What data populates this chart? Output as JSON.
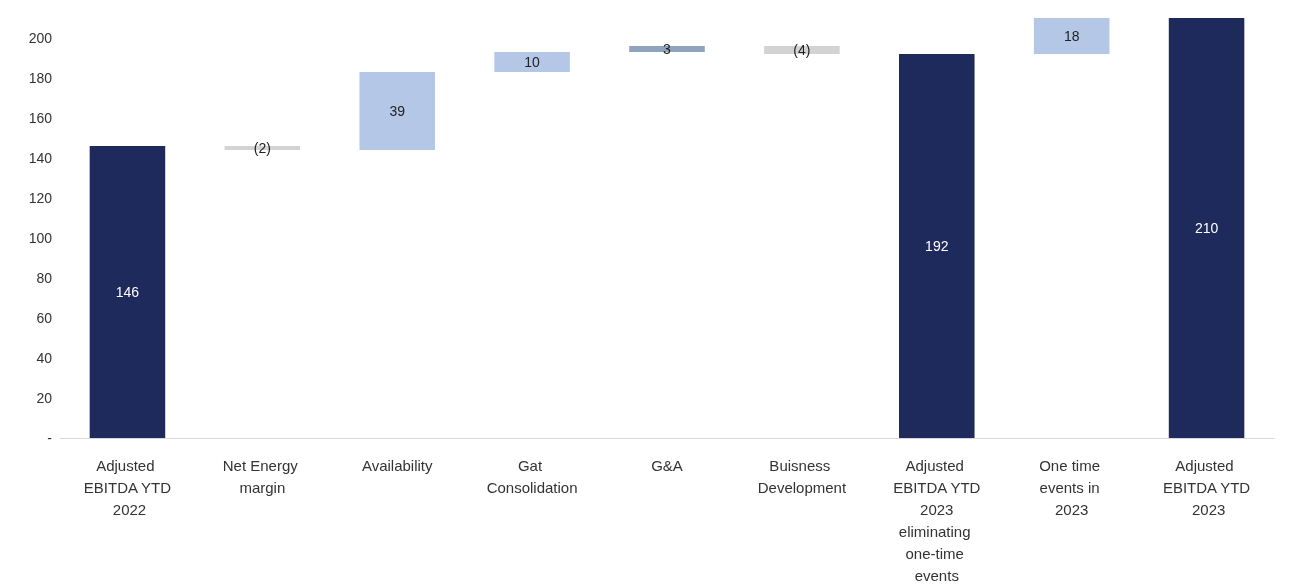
{
  "chart_data": {
    "type": "bar",
    "categories": [
      "Adjusted EBITDA YTD 2022",
      "Net Energy margin",
      "Availability",
      "Gat Consolidation",
      "G&A",
      "Buisness Development",
      "Adjusted EBITDA YTD 2023 eliminating one-time events",
      "One time events in 2023",
      "Adjusted EBITDA YTD 2023"
    ],
    "values": [
      146,
      -2,
      39,
      10,
      3,
      -4,
      192,
      18,
      210
    ],
    "base": [
      0,
      146,
      144,
      183,
      193,
      196,
      0,
      192,
      0
    ],
    "colors": [
      "#1f2a5c",
      "#d3d3d3",
      "#b4c7e7",
      "#b4c7e7",
      "#8fa3bf",
      "#d3d3d3",
      "#1f2a5c",
      "#b4c7e7",
      "#1f2a5c"
    ],
    "value_labels": [
      "146",
      "(2)",
      "39",
      "10",
      "3",
      "(4)",
      "192",
      "18",
      "210"
    ],
    "ylim": [
      0,
      210
    ],
    "yticks": [
      {
        "value": 0,
        "label": "-"
      },
      20,
      40,
      60,
      80,
      100,
      120,
      140,
      160,
      180,
      200
    ],
    "grid": false
  }
}
